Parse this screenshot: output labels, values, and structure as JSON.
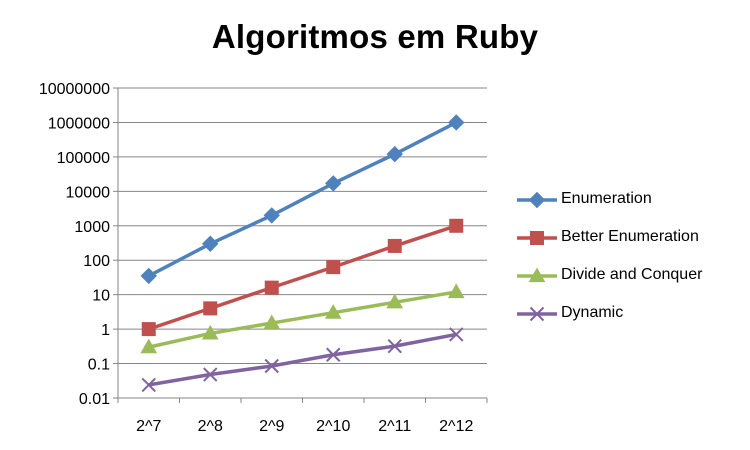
{
  "chart_data": {
    "type": "line",
    "title": "Algoritmos em Ruby",
    "xlabel": "",
    "ylabel": "",
    "y_scale": "log",
    "ylim": [
      0.01,
      10000000
    ],
    "y_ticks": [
      "0.01",
      "0.1",
      "1",
      "10",
      "100",
      "1000",
      "10000",
      "100000",
      "1000000",
      "10000000"
    ],
    "grid": "horizontal",
    "legend_position": "right",
    "categories": [
      "2^7",
      "2^8",
      "2^9",
      "2^10",
      "2^11",
      "2^12"
    ],
    "series": [
      {
        "name": "Enumeration",
        "color": "#4F81BD",
        "marker": "diamond",
        "values": [
          35,
          300,
          2000,
          17000,
          120000,
          1000000
        ]
      },
      {
        "name": "Better Enumeration",
        "color": "#C0504D",
        "marker": "square",
        "values": [
          1,
          4,
          16,
          63,
          260,
          1000
        ]
      },
      {
        "name": "Divide and Conquer",
        "color": "#9BBB59",
        "marker": "triangle",
        "values": [
          0.3,
          0.75,
          1.5,
          3,
          6,
          12
        ]
      },
      {
        "name": "Dynamic",
        "color": "#8064A2",
        "marker": "x",
        "values": [
          0.024,
          0.048,
          0.085,
          0.18,
          0.32,
          0.7
        ]
      }
    ]
  }
}
